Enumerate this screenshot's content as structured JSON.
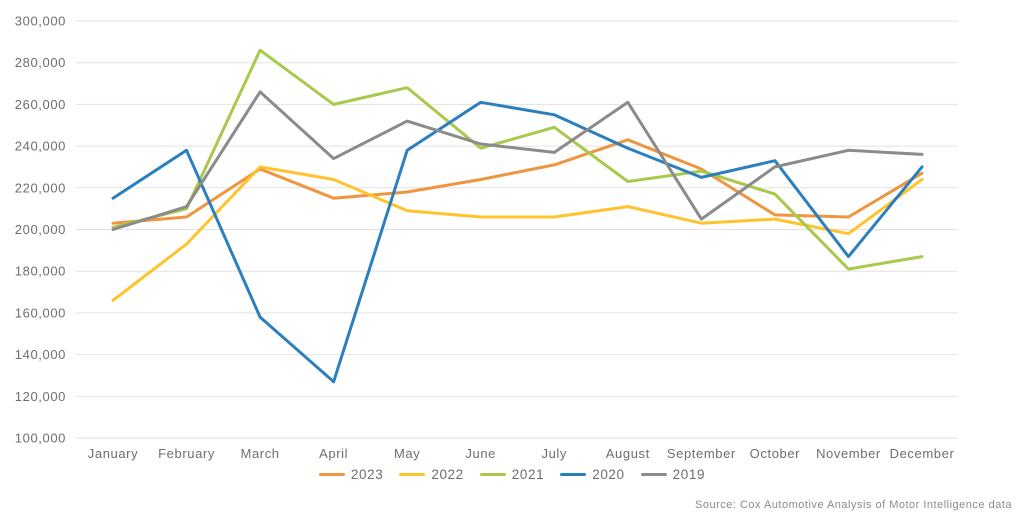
{
  "chart_data": {
    "type": "line",
    "title": "",
    "xlabel": "",
    "ylabel": "",
    "ylim": [
      100000,
      300000
    ],
    "y_tick_step": 20000,
    "y_tick_labels": [
      "100,000",
      "120,000",
      "140,000",
      "160,000",
      "180,000",
      "200,000",
      "220,000",
      "240,000",
      "260,000",
      "280,000",
      "300,000"
    ],
    "y_tick_values": [
      100000,
      120000,
      140000,
      160000,
      180000,
      200000,
      220000,
      240000,
      260000,
      280000,
      300000
    ],
    "grid": "horizontal-only",
    "legend_position": "bottom-center",
    "categories": [
      "January",
      "February",
      "March",
      "April",
      "May",
      "June",
      "July",
      "August",
      "September",
      "October",
      "November",
      "December"
    ],
    "series": [
      {
        "name": "2023",
        "color": "#F0953F",
        "values": [
          203000,
          206000,
          229000,
          215000,
          218000,
          224000,
          231000,
          243000,
          229000,
          207000,
          206000,
          227000
        ]
      },
      {
        "name": "2022",
        "color": "#FFC42D",
        "values": [
          166000,
          193000,
          230000,
          224000,
          209000,
          206000,
          206000,
          211000,
          203000,
          205000,
          198000,
          224000
        ]
      },
      {
        "name": "2021",
        "color": "#A8C94B",
        "values": [
          201000,
          210000,
          286000,
          260000,
          268000,
          239000,
          249000,
          223000,
          228000,
          217000,
          181000,
          187000
        ]
      },
      {
        "name": "2020",
        "color": "#2C7FBD",
        "values": [
          215000,
          238000,
          158000,
          127000,
          238000,
          261000,
          255000,
          239000,
          225000,
          233000,
          187000,
          230000
        ]
      },
      {
        "name": "2019",
        "color": "#8B8B8B",
        "values": [
          200000,
          211000,
          266000,
          234000,
          252000,
          241000,
          237000,
          261000,
          205000,
          230000,
          238000,
          236000
        ]
      }
    ]
  },
  "source": "Source: Cox Automotive Analysis of Motor Intelligence data"
}
